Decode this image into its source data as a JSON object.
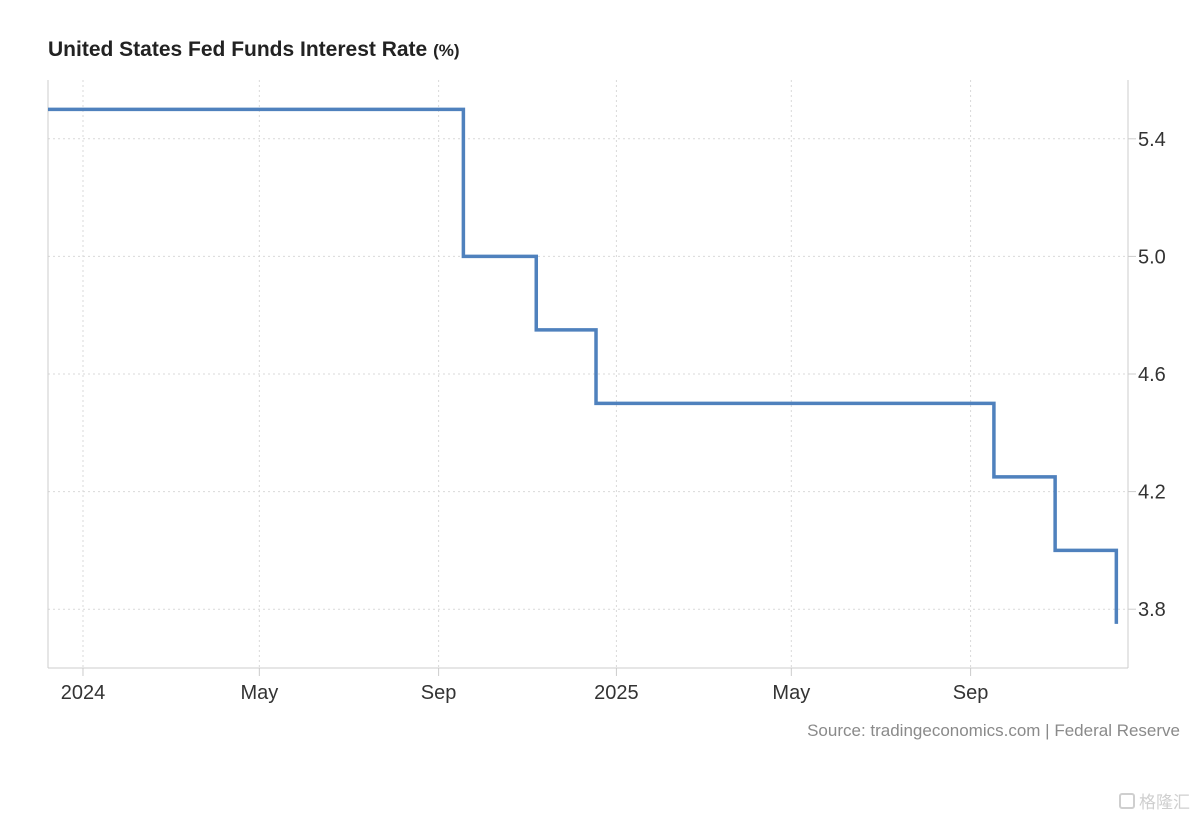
{
  "chart_data": {
    "type": "line",
    "title": "United States Fed Funds Interest Rate",
    "title_unit": "(%)",
    "step": true,
    "x_tick_labels": [
      "2024",
      "May",
      "Sep",
      "2025",
      "May",
      "Sep"
    ],
    "x_tick_dates": [
      "2024-01-01",
      "2024-05-01",
      "2024-09-01",
      "2025-01-01",
      "2025-05-01",
      "2025-09-01"
    ],
    "y_ticks": [
      3.8,
      4.2,
      4.6,
      5.0,
      5.4
    ],
    "y_tick_labels": [
      "3.8",
      "4.2",
      "4.6",
      "5.0",
      "5.4"
    ],
    "xlim": [
      "2023-12-08",
      "2025-12-18"
    ],
    "ylim": [
      3.6,
      5.6
    ],
    "grid": true,
    "color": "#4f81bd",
    "series": [
      {
        "x": [
          "2023-12-08",
          "2024-09-18",
          "2024-11-07",
          "2024-12-18",
          "2025-09-17",
          "2025-10-29",
          "2025-12-10"
        ],
        "values": [
          5.5,
          5.0,
          4.75,
          4.5,
          4.25,
          4.0,
          3.75
        ]
      }
    ]
  },
  "source_text": "Source: tradingeconomics.com | Federal Reserve",
  "watermark_text": "格隆汇"
}
